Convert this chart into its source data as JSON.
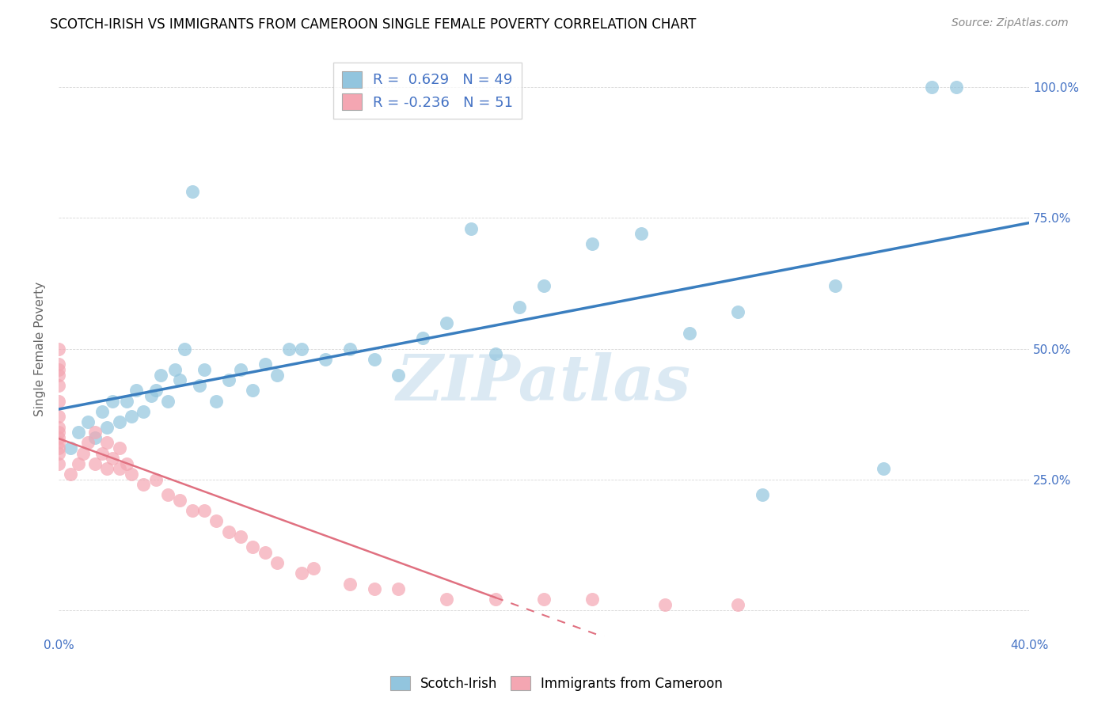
{
  "title": "SCOTCH-IRISH VS IMMIGRANTS FROM CAMEROON SINGLE FEMALE POVERTY CORRELATION CHART",
  "source": "Source: ZipAtlas.com",
  "ylabel": "Single Female Poverty",
  "watermark": "ZIPatlas",
  "xlim": [
    0.0,
    0.4
  ],
  "ylim": [
    -0.05,
    1.05
  ],
  "xticks": [
    0.0,
    0.05,
    0.1,
    0.15,
    0.2,
    0.25,
    0.3,
    0.35,
    0.4
  ],
  "yticks": [
    0.0,
    0.25,
    0.5,
    0.75,
    1.0
  ],
  "blue_R": 0.629,
  "blue_N": 49,
  "pink_R": -0.236,
  "pink_N": 51,
  "blue_color": "#92c5de",
  "pink_color": "#f4a6b2",
  "blue_line_color": "#3a7ebf",
  "pink_line_color": "#e07080",
  "legend_label_blue": "Scotch-Irish",
  "legend_label_pink": "Immigrants from Cameroon",
  "blue_scatter_x": [
    0.005,
    0.008,
    0.012,
    0.015,
    0.018,
    0.02,
    0.022,
    0.025,
    0.028,
    0.03,
    0.032,
    0.035,
    0.038,
    0.04,
    0.042,
    0.045,
    0.048,
    0.05,
    0.052,
    0.055,
    0.058,
    0.06,
    0.065,
    0.07,
    0.075,
    0.08,
    0.085,
    0.09,
    0.095,
    0.1,
    0.11,
    0.12,
    0.13,
    0.14,
    0.15,
    0.16,
    0.17,
    0.18,
    0.19,
    0.2,
    0.22,
    0.24,
    0.26,
    0.28,
    0.29,
    0.32,
    0.34,
    0.36,
    0.37
  ],
  "blue_scatter_y": [
    0.31,
    0.34,
    0.36,
    0.33,
    0.38,
    0.35,
    0.4,
    0.36,
    0.4,
    0.37,
    0.42,
    0.38,
    0.41,
    0.42,
    0.45,
    0.4,
    0.46,
    0.44,
    0.5,
    0.8,
    0.43,
    0.46,
    0.4,
    0.44,
    0.46,
    0.42,
    0.47,
    0.45,
    0.5,
    0.5,
    0.48,
    0.5,
    0.48,
    0.45,
    0.52,
    0.55,
    0.73,
    0.49,
    0.58,
    0.62,
    0.7,
    0.72,
    0.53,
    0.57,
    0.22,
    0.62,
    0.27,
    1.0,
    1.0
  ],
  "pink_scatter_x": [
    0.0,
    0.0,
    0.0,
    0.0,
    0.0,
    0.0,
    0.0,
    0.0,
    0.0,
    0.0,
    0.0,
    0.0,
    0.0,
    0.0,
    0.005,
    0.008,
    0.01,
    0.012,
    0.015,
    0.015,
    0.018,
    0.02,
    0.02,
    0.022,
    0.025,
    0.025,
    0.028,
    0.03,
    0.035,
    0.04,
    0.045,
    0.05,
    0.055,
    0.06,
    0.065,
    0.07,
    0.075,
    0.08,
    0.085,
    0.09,
    0.1,
    0.105,
    0.12,
    0.13,
    0.14,
    0.16,
    0.18,
    0.2,
    0.22,
    0.25,
    0.28
  ],
  "pink_scatter_y": [
    0.28,
    0.3,
    0.31,
    0.32,
    0.33,
    0.34,
    0.35,
    0.37,
    0.4,
    0.43,
    0.45,
    0.46,
    0.47,
    0.5,
    0.26,
    0.28,
    0.3,
    0.32,
    0.28,
    0.34,
    0.3,
    0.27,
    0.32,
    0.29,
    0.27,
    0.31,
    0.28,
    0.26,
    0.24,
    0.25,
    0.22,
    0.21,
    0.19,
    0.19,
    0.17,
    0.15,
    0.14,
    0.12,
    0.11,
    0.09,
    0.07,
    0.08,
    0.05,
    0.04,
    0.04,
    0.02,
    0.02,
    0.02,
    0.02,
    0.01,
    0.01
  ]
}
